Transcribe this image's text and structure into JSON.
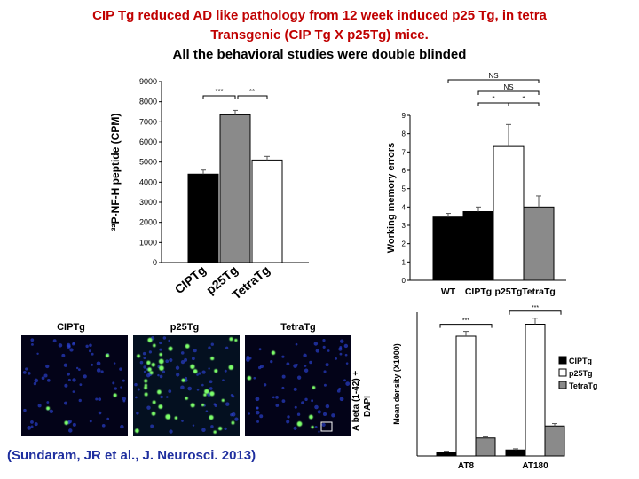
{
  "header": {
    "line1": "CIP Tg reduced AD like pathology from 12 week induced p25 Tg, in tetra",
    "line2": "Transgenic  (CIP Tg X p25Tg)  mice.",
    "line3": "All the behavioral studies were double blinded"
  },
  "citation": "(Sundaram, JR et al., J. Neurosci. 2013)",
  "microscopy": {
    "panels": [
      "CIPTg",
      "p25Tg",
      "TetraTg"
    ],
    "side_label_line1": "A beta (1-42) +",
    "side_label_line2": "DAPI"
  },
  "colors": {
    "black": "#000000",
    "gray": "#8a8a8a",
    "white": "#ffffff",
    "title_red": "#c00000",
    "citation_blue": "#1f2f9f"
  },
  "chart_data": [
    {
      "type": "bar",
      "categories": [
        "CIPTg",
        "p25Tg",
        "TetraTg"
      ],
      "values": [
        4400,
        7350,
        5100
      ],
      "errors": [
        200,
        220,
        180
      ],
      "colors": [
        "#000000",
        "#8a8a8a",
        "#ffffff"
      ],
      "ylabel": "³²P-NF-H peptide (CPM)",
      "ylim": [
        0,
        9000
      ],
      "yticks": [
        0,
        1000,
        2000,
        3000,
        4000,
        5000,
        6000,
        7000,
        8000,
        9000
      ],
      "annotations": [
        "***",
        "**"
      ]
    },
    {
      "type": "bar",
      "categories": [
        "WT",
        "CIPTg",
        "p25Tg",
        "TetraTg"
      ],
      "values": [
        3.45,
        3.75,
        7.3,
        4.0
      ],
      "errors": [
        0.2,
        0.25,
        1.2,
        0.6
      ],
      "colors": [
        "#000000",
        "#000000",
        "#ffffff",
        "#8a8a8a"
      ],
      "ylabel": "Working memory errors",
      "ylim": [
        0,
        9
      ],
      "yticks": [
        0,
        1,
        2,
        3,
        4,
        5,
        6,
        7,
        8,
        9
      ],
      "annotations": [
        "NS",
        "NS",
        "*",
        "*"
      ]
    },
    {
      "type": "bar",
      "categories": [
        "AT8",
        "AT180"
      ],
      "series": [
        {
          "name": "CIPTg",
          "values": [
            0.03,
            0.05
          ],
          "color": "#000000"
        },
        {
          "name": "p25Tg",
          "values": [
            1.0,
            1.1
          ],
          "color": "#ffffff"
        },
        {
          "name": "TetraTg",
          "values": [
            0.15,
            0.25
          ],
          "color": "#8a8a8a"
        }
      ],
      "errors": [
        [
          0.01,
          0.01
        ],
        [
          0.04,
          0.05
        ],
        [
          0.01,
          0.02
        ]
      ],
      "ylabel": "Mean density (X1000)",
      "ylim": [
        0,
        1.2
      ],
      "annotations": [
        "***",
        "***"
      ],
      "legend": "right"
    }
  ]
}
